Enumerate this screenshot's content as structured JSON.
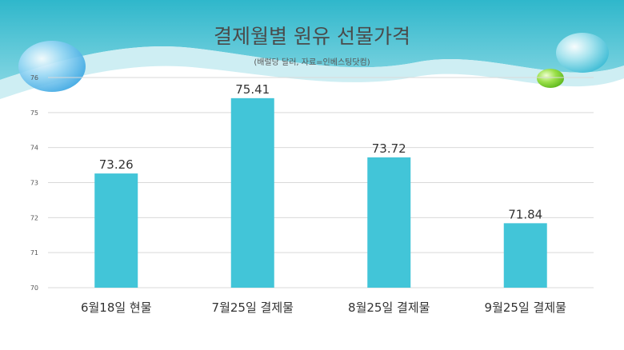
{
  "chart_data": {
    "type": "bar",
    "title": "결제월별 원유 선물가격",
    "subtitle": "(배럴당 달러, 자료=인베스팅닷컴)",
    "categories": [
      "6월18일 현물",
      "7월25일 결제물",
      "8월25일 결제물",
      "9월25일 결제물"
    ],
    "values": [
      73.26,
      75.41,
      73.72,
      71.84
    ],
    "value_labels": [
      "73.26",
      "75.41",
      "73.72",
      "71.84"
    ],
    "ylim": [
      70,
      76
    ],
    "yticks": [
      "70",
      "71",
      "72",
      "73",
      "74",
      "75",
      "76"
    ],
    "grid": true,
    "legend": "none",
    "colors": {
      "bar": "#42c5d8",
      "grid": "#d9d9d9",
      "wave_dark": "#3bbccf",
      "wave_light": "#bfe8ee",
      "bubble_blue": "#6cc4ef",
      "bubble_green": "#8fdc3c"
    }
  }
}
